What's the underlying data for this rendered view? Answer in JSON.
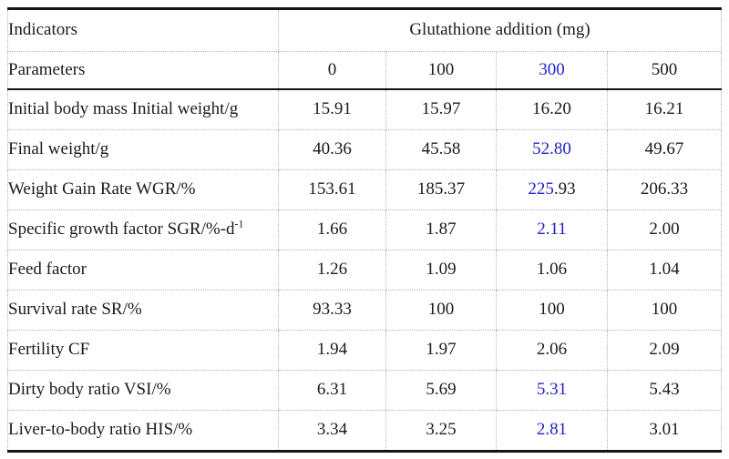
{
  "colors": {
    "text_black": "#1b1b1b",
    "highlight_blue": "#2222cc",
    "grid_dotted_gray": "#b3b3b3",
    "rule_black": "#161616",
    "background": "#ffffff"
  },
  "table": {
    "header": {
      "indicators_label": "Indicators",
      "parameters_label": "Parameters",
      "group_label": "Glutathione addition (mg)",
      "columns": [
        {
          "segments": [
            {
              "text": "0"
            }
          ]
        },
        {
          "segments": [
            {
              "text": "100"
            }
          ]
        },
        {
          "segments": [
            {
              "text": "300",
              "color": "blue"
            }
          ]
        },
        {
          "segments": [
            {
              "text": "500"
            }
          ]
        }
      ]
    },
    "rows": [
      {
        "label": {
          "segments": [
            {
              "text": "Initial body mass Initial weight/g"
            }
          ]
        },
        "values": [
          {
            "segments": [
              {
                "text": "15.91"
              }
            ]
          },
          {
            "segments": [
              {
                "text": "15.97"
              }
            ]
          },
          {
            "segments": [
              {
                "text": "16.20"
              }
            ]
          },
          {
            "segments": [
              {
                "text": "16.21"
              }
            ]
          }
        ]
      },
      {
        "label": {
          "segments": [
            {
              "text": "Final weight/g"
            }
          ]
        },
        "values": [
          {
            "segments": [
              {
                "text": "40.36"
              }
            ]
          },
          {
            "segments": [
              {
                "text": "45.58"
              }
            ]
          },
          {
            "segments": [
              {
                "text": "52.80",
                "color": "blue"
              }
            ]
          },
          {
            "segments": [
              {
                "text": "49.67"
              }
            ]
          }
        ]
      },
      {
        "label": {
          "segments": [
            {
              "text": "Weight Gain Rate WGR/%"
            }
          ]
        },
        "values": [
          {
            "segments": [
              {
                "text": "153.61"
              }
            ]
          },
          {
            "segments": [
              {
                "text": "185.37"
              }
            ]
          },
          {
            "segments": [
              {
                "text": "225",
                "color": "blue"
              },
              {
                "text": ".93"
              }
            ]
          },
          {
            "segments": [
              {
                "text": "206.33"
              }
            ]
          }
        ]
      },
      {
        "label": {
          "segments": [
            {
              "text": "Specific growth factor SGR/%-d"
            },
            {
              "text": "-1",
              "sup": true
            }
          ]
        },
        "values": [
          {
            "segments": [
              {
                "text": "1.66"
              }
            ]
          },
          {
            "segments": [
              {
                "text": "1.87"
              }
            ]
          },
          {
            "segments": [
              {
                "text": "2.11",
                "color": "blue"
              }
            ]
          },
          {
            "segments": [
              {
                "text": "2.00"
              }
            ]
          }
        ]
      },
      {
        "label": {
          "segments": [
            {
              "text": "Feed factor"
            }
          ]
        },
        "values": [
          {
            "segments": [
              {
                "text": "1.26"
              }
            ]
          },
          {
            "segments": [
              {
                "text": "1.09"
              }
            ]
          },
          {
            "segments": [
              {
                "text": "1.06"
              }
            ]
          },
          {
            "segments": [
              {
                "text": "1.04"
              }
            ]
          }
        ]
      },
      {
        "label": {
          "segments": [
            {
              "text": "Survival rate SR/%"
            }
          ]
        },
        "values": [
          {
            "segments": [
              {
                "text": "93.33"
              }
            ]
          },
          {
            "segments": [
              {
                "text": "100"
              }
            ]
          },
          {
            "segments": [
              {
                "text": "100"
              }
            ]
          },
          {
            "segments": [
              {
                "text": "100"
              }
            ]
          }
        ]
      },
      {
        "label": {
          "segments": [
            {
              "text": "Fertility CF"
            }
          ]
        },
        "values": [
          {
            "segments": [
              {
                "text": "1.94"
              }
            ]
          },
          {
            "segments": [
              {
                "text": "1.97"
              }
            ]
          },
          {
            "segments": [
              {
                "text": "2.06"
              }
            ]
          },
          {
            "segments": [
              {
                "text": "2.09"
              }
            ]
          }
        ]
      },
      {
        "label": {
          "segments": [
            {
              "text": "Dirty body ratio VSI/%"
            }
          ]
        },
        "values": [
          {
            "segments": [
              {
                "text": "6.31"
              }
            ]
          },
          {
            "segments": [
              {
                "text": "5.69"
              }
            ]
          },
          {
            "segments": [
              {
                "text": "5.31",
                "color": "blue"
              }
            ]
          },
          {
            "segments": [
              {
                "text": "5.43"
              }
            ]
          }
        ]
      },
      {
        "label": {
          "segments": [
            {
              "text": "Liver-to-body ratio HIS/%"
            }
          ]
        },
        "values": [
          {
            "segments": [
              {
                "text": "3.34"
              }
            ]
          },
          {
            "segments": [
              {
                "text": "3.25"
              }
            ]
          },
          {
            "segments": [
              {
                "text": "2.81",
                "color": "blue"
              }
            ]
          },
          {
            "segments": [
              {
                "text": "3.01"
              }
            ]
          }
        ]
      }
    ]
  }
}
